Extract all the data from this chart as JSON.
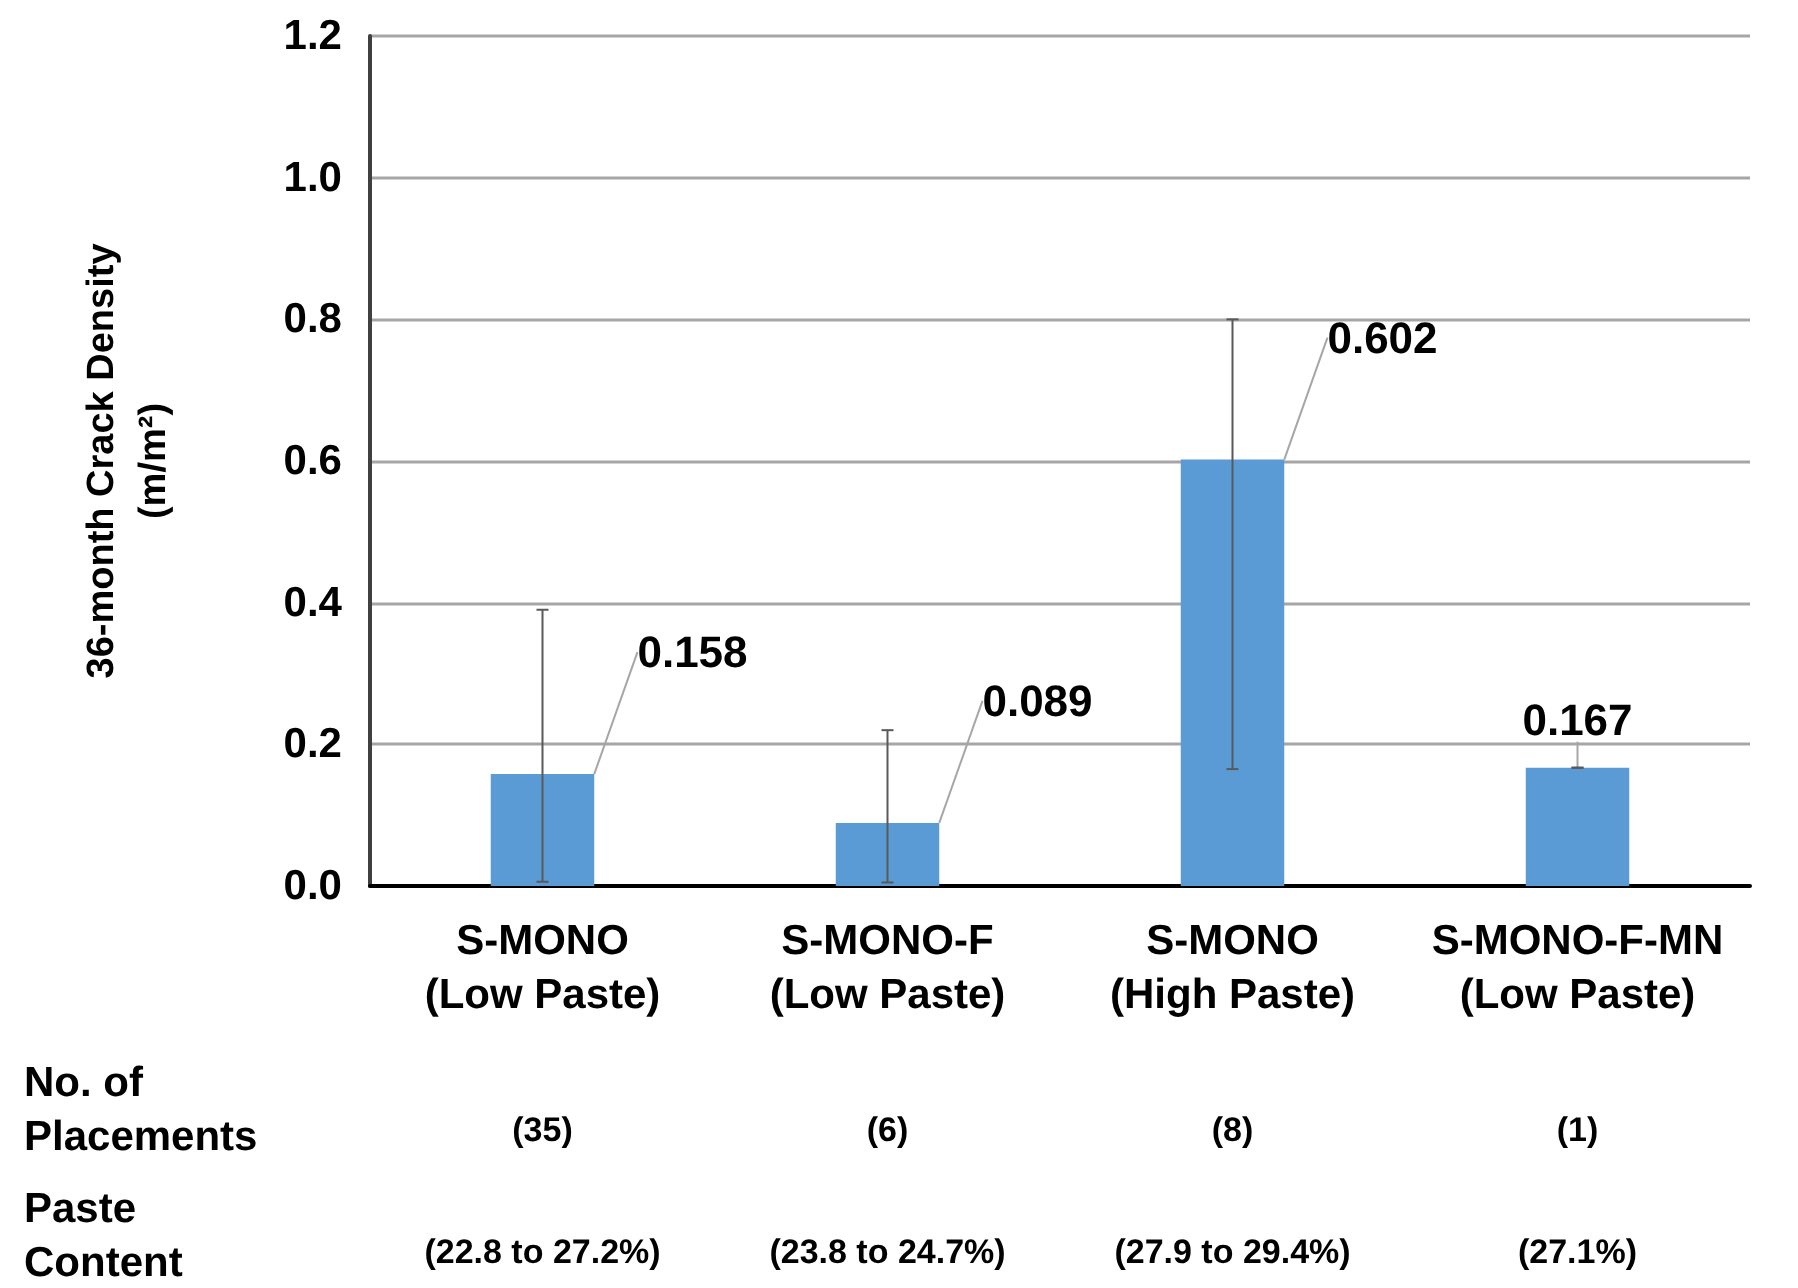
{
  "chart_data": {
    "type": "bar",
    "ylabel": "36-month Crack Density\n(m/m²)",
    "categories": [
      "S-MONO\n(Low Paste)",
      "S-MONO-F\n(Low Paste)",
      "S-MONO\n(High Paste)",
      "S-MONO-F-MN\n(Low Paste)"
    ],
    "values": [
      0.158,
      0.089,
      0.602,
      0.167
    ],
    "errors": [
      [
        0.006,
        0.39
      ],
      [
        0.005,
        0.22
      ],
      [
        0.165,
        0.8
      ],
      [
        0.167,
        0.167
      ]
    ],
    "color": "#5b9bd5",
    "data_labels": true,
    "ylim": [
      0,
      1.2
    ],
    "yticks": [
      {
        "value": 0,
        "label": "0.0"
      },
      0.2,
      0.4,
      0.6,
      0.8,
      {
        "value": 1,
        "label": "1.0"
      },
      1.2
    ],
    "grid": "y",
    "annotations": [
      "No. of\nPlacements",
      "(35)",
      "(6)",
      "(8)",
      "(1)",
      "Paste\nContent",
      "(22.8 to 27.2%)",
      "(23.8 to 24.7%)",
      "(27.9 to 29.4%)",
      "(27.1%)"
    ]
  }
}
